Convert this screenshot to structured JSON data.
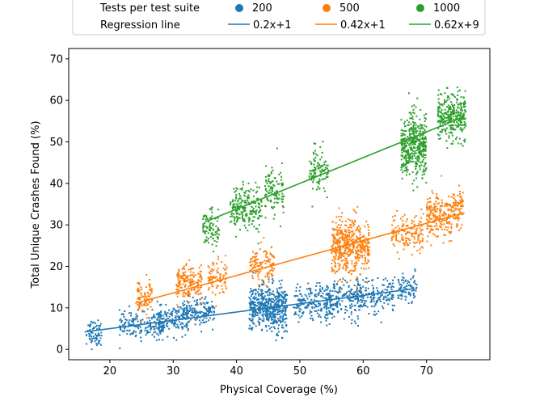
{
  "chart_data": {
    "type": "scatter",
    "xlabel": "Physical Coverage  (%)",
    "ylabel": "Total Unique Crashes Found (%)",
    "xlim": [
      13.5,
      80
    ],
    "ylim": [
      -2.5,
      72.5
    ],
    "xticks": [
      20,
      30,
      40,
      50,
      60,
      70
    ],
    "yticks": [
      0,
      10,
      20,
      30,
      40,
      50,
      60,
      70
    ],
    "grid": false,
    "legend_placement": "top-center",
    "legend": {
      "size_title": "Tests per test suite",
      "line_title": "Regression line",
      "entries": [
        {
          "size_label": "200",
          "line_label": "0.2x+1",
          "color": "#1f77b4"
        },
        {
          "size_label": "500",
          "line_label": "0.42x+1",
          "color": "#ff7f0e"
        },
        {
          "size_label": "1000",
          "line_label": "0.62x+9",
          "color": "#2ca02c"
        }
      ]
    },
    "series": [
      {
        "name": "200",
        "color": "#1f77b4",
        "regression": {
          "slope": 0.2,
          "intercept": 1,
          "x_range": [
            16,
            68
          ]
        },
        "clusters": [
          {
            "x": 17.5,
            "y": 4,
            "x_spread": 1.2,
            "y_spread": 3,
            "count": 70
          },
          {
            "x": 25,
            "y": 6,
            "x_spread": 3.5,
            "y_spread": 3,
            "count": 180
          },
          {
            "x": 30,
            "y": 7,
            "x_spread": 2.5,
            "y_spread": 3,
            "count": 150
          },
          {
            "x": 34,
            "y": 9,
            "x_spread": 2.5,
            "y_spread": 3,
            "count": 150
          },
          {
            "x": 45,
            "y": 10,
            "x_spread": 3,
            "y_spread": 5,
            "count": 500
          },
          {
            "x": 52,
            "y": 11,
            "x_spread": 3,
            "y_spread": 4,
            "count": 180
          },
          {
            "x": 57,
            "y": 12,
            "x_spread": 3,
            "y_spread": 4,
            "count": 200
          },
          {
            "x": 62,
            "y": 13,
            "x_spread": 3,
            "y_spread": 4,
            "count": 150
          },
          {
            "x": 67,
            "y": 15,
            "x_spread": 1.5,
            "y_spread": 3,
            "count": 80
          }
        ]
      },
      {
        "name": "500",
        "color": "#ff7f0e",
        "regression": {
          "slope": 0.42,
          "intercept": 1,
          "x_range": [
            24,
            76
          ]
        },
        "clusters": [
          {
            "x": 25.5,
            "y": 12,
            "x_spread": 1.2,
            "y_spread": 4,
            "count": 90
          },
          {
            "x": 32.5,
            "y": 16,
            "x_spread": 2,
            "y_spread": 4,
            "count": 180
          },
          {
            "x": 37,
            "y": 17,
            "x_spread": 1.5,
            "y_spread": 4,
            "count": 90
          },
          {
            "x": 44,
            "y": 20,
            "x_spread": 2,
            "y_spread": 4,
            "count": 120
          },
          {
            "x": 58,
            "y": 25,
            "x_spread": 3,
            "y_spread": 6,
            "count": 500
          },
          {
            "x": 67,
            "y": 28,
            "x_spread": 2.5,
            "y_spread": 4,
            "count": 150
          },
          {
            "x": 72,
            "y": 32,
            "x_spread": 2,
            "y_spread": 5,
            "count": 200
          },
          {
            "x": 75,
            "y": 34,
            "x_spread": 0.8,
            "y_spread": 4,
            "count": 80
          }
        ]
      },
      {
        "name": "1000",
        "color": "#2ca02c",
        "regression": {
          "slope": 0.62,
          "intercept": 9,
          "x_range": [
            35,
            76
          ]
        },
        "clusters": [
          {
            "x": 36,
            "y": 29,
            "x_spread": 1.3,
            "y_spread": 4,
            "count": 90
          },
          {
            "x": 41.5,
            "y": 34,
            "x_spread": 2.5,
            "y_spread": 5,
            "count": 220
          },
          {
            "x": 46,
            "y": 38,
            "x_spread": 1.5,
            "y_spread": 5,
            "count": 110
          },
          {
            "x": 53,
            "y": 43,
            "x_spread": 1.5,
            "y_spread": 5,
            "count": 110
          },
          {
            "x": 68,
            "y": 49,
            "x_spread": 2,
            "y_spread": 7,
            "count": 450
          },
          {
            "x": 74,
            "y": 56,
            "x_spread": 2.2,
            "y_spread": 5,
            "count": 320
          }
        ]
      }
    ]
  }
}
